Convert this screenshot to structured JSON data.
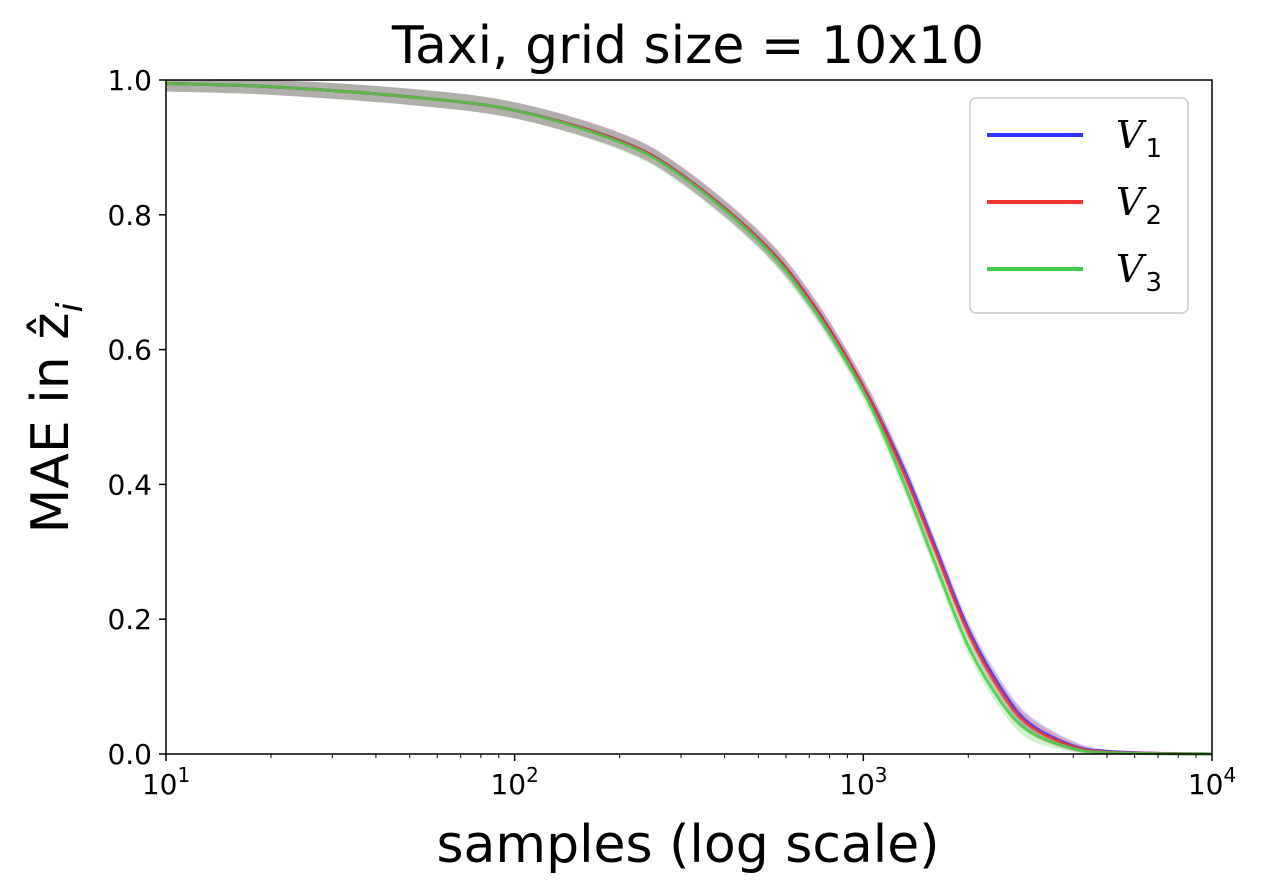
{
  "chart_data": {
    "type": "line",
    "title": "Taxi, grid size = 10x10",
    "xlabel": "samples (log scale)",
    "ylabel": "MAE in ẑ",
    "ylabel_subscript": "i",
    "xscale": "log",
    "xlim": [
      10,
      10000
    ],
    "ylim": [
      0.0,
      1.0
    ],
    "x_ticks": [
      {
        "value": 10,
        "base": "10",
        "exp": "1"
      },
      {
        "value": 100,
        "base": "10",
        "exp": "2"
      },
      {
        "value": 1000,
        "base": "10",
        "exp": "3"
      },
      {
        "value": 10000,
        "base": "10",
        "exp": "4"
      }
    ],
    "y_ticks": [
      {
        "value": 0.0,
        "label": "0.0"
      },
      {
        "value": 0.2,
        "label": "0.2"
      },
      {
        "value": 0.4,
        "label": "0.4"
      },
      {
        "value": 0.6,
        "label": "0.6"
      },
      {
        "value": 0.8,
        "label": "0.8"
      },
      {
        "value": 1.0,
        "label": "1.0"
      }
    ],
    "grid": false,
    "legend_position": "top-right",
    "x": [
      10,
      20,
      50,
      100,
      200,
      300,
      500,
      700,
      1000,
      1300,
      1600,
      2000,
      2500,
      3000,
      4000,
      5000,
      7000,
      10000
    ],
    "series": [
      {
        "name": "V",
        "name_subscript": "1",
        "color": "#3333ff",
        "values": [
          0.995,
          0.99,
          0.975,
          0.955,
          0.91,
          0.86,
          0.765,
          0.675,
          0.545,
          0.425,
          0.31,
          0.185,
          0.095,
          0.045,
          0.012,
          0.004,
          0.001,
          0.0
        ],
        "band": 0.012
      },
      {
        "name": "V",
        "name_subscript": "2",
        "color": "#ee3333",
        "values": [
          0.995,
          0.99,
          0.975,
          0.955,
          0.91,
          0.86,
          0.765,
          0.675,
          0.545,
          0.42,
          0.305,
          0.18,
          0.09,
          0.042,
          0.011,
          0.003,
          0.001,
          0.0
        ],
        "band": 0.012
      },
      {
        "name": "V",
        "name_subscript": "3",
        "color": "#44cc44",
        "values": [
          0.995,
          0.99,
          0.975,
          0.955,
          0.908,
          0.858,
          0.762,
          0.67,
          0.538,
          0.405,
          0.285,
          0.16,
          0.075,
          0.033,
          0.008,
          0.002,
          0.0005,
          0.0
        ],
        "band": 0.012
      }
    ]
  }
}
